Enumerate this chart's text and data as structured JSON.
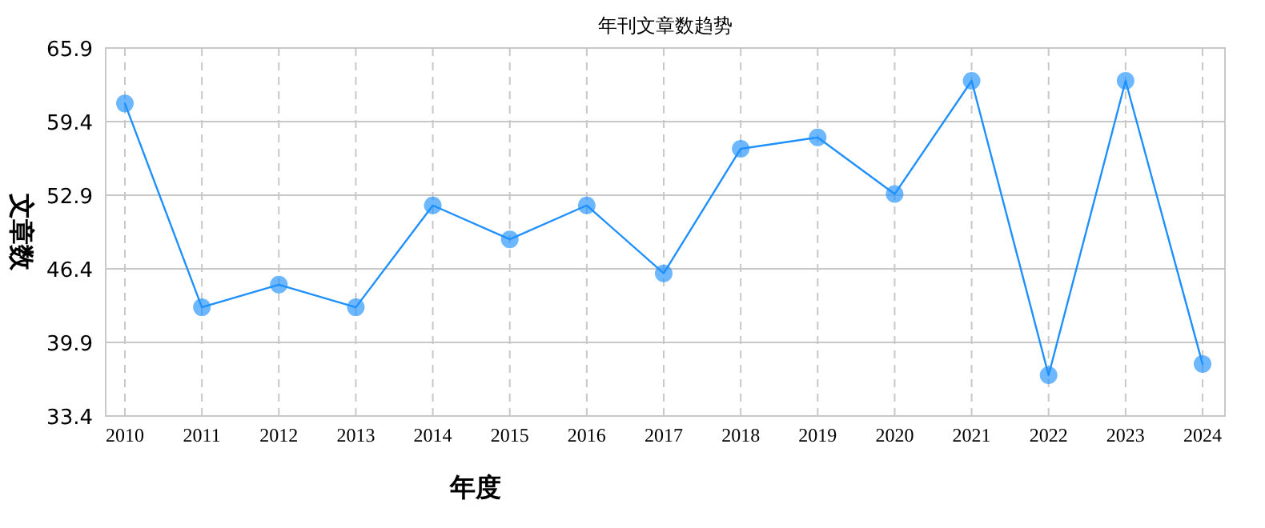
{
  "chart_data": {
    "type": "line",
    "title": "年刊文章数趋势",
    "xlabel": "年度",
    "ylabel": "文章数",
    "categories": [
      "2010",
      "2011",
      "2012",
      "2013",
      "2014",
      "2015",
      "2016",
      "2017",
      "2018",
      "2019",
      "2020",
      "2021",
      "2022",
      "2023",
      "2024"
    ],
    "series": [
      {
        "color": "#1e90ff",
        "values": [
          61,
          43,
          45,
          43,
          52,
          49,
          52,
          46,
          57,
          58,
          53,
          63,
          37,
          63,
          38
        ]
      }
    ],
    "ylim": [
      33.4,
      65.9
    ],
    "yticks": [
      33.4,
      39.9,
      46.4,
      52.9,
      59.4,
      65.9
    ],
    "grid": true,
    "marker": "circle",
    "line_style": "solid"
  }
}
